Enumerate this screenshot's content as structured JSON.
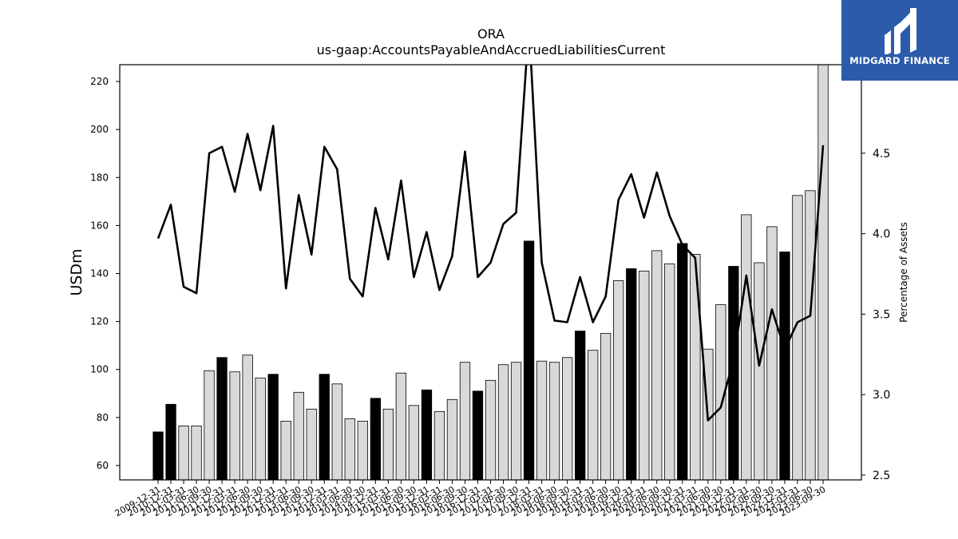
{
  "chart_data": {
    "type": "bar",
    "title": "ORA",
    "subtitle": "us-gaap:AccountsPayableAndAccruedLiabilitiesCurrent",
    "ylabel": "USDm",
    "y2label": "Percentage of Assets",
    "ylim": [
      54,
      227
    ],
    "y2lim": [
      2.47,
      5.05
    ],
    "yticks": [
      60,
      80,
      100,
      120,
      140,
      160,
      180,
      200,
      220
    ],
    "y2ticks": [
      "2.5",
      "3.0",
      "3.5",
      "4.0",
      "4.5"
    ],
    "grid": false,
    "categories": [
      "2009-12-31",
      "2010-12-31",
      "2011-03-31",
      "2011-06-30",
      "2011-09-30",
      "2011-12-31",
      "2012-03-31",
      "2012-06-30",
      "2012-09-30",
      "2012-12-31",
      "2013-03-31",
      "2013-06-30",
      "2013-09-30",
      "2013-12-31",
      "2014-03-31",
      "2014-06-30",
      "2014-09-30",
      "2014-12-31",
      "2015-03-31",
      "2015-06-30",
      "2015-09-30",
      "2015-12-31",
      "2016-03-31",
      "2016-06-30",
      "2016-09-30",
      "2016-12-31",
      "2017-03-31",
      "2017-06-30",
      "2017-09-30",
      "2017-12-31",
      "2018-03-31",
      "2018-06-30",
      "2018-09-30",
      "2018-12-31",
      "2019-03-31",
      "2019-06-30",
      "2019-09-30",
      "2019-12-31",
      "2020-03-31",
      "2020-06-30",
      "2020-09-30",
      "2020-12-31",
      "2021-03-31",
      "2021-06-30",
      "2021-09-30",
      "2021-12-31",
      "2022-03-31",
      "2022-06-30",
      "2022-09-30",
      "2022-12-31",
      "2023-03-31",
      "2023-06-30",
      "2023-09-30"
    ],
    "series": [
      {
        "values": [
          74,
          85.5,
          76.5,
          76.5,
          99.5,
          105,
          99,
          106,
          96.5,
          98,
          78.5,
          90.5,
          83.5,
          98,
          94,
          79.5,
          78.5,
          88,
          83.5,
          98.5,
          85,
          91.5,
          82.5,
          87.5,
          103,
          91,
          95.5,
          102,
          103,
          153.5,
          103.5,
          103,
          105,
          116,
          108,
          115,
          137,
          142,
          141,
          149.5,
          144,
          152.5,
          148,
          108.5,
          127,
          143,
          164.5,
          144.5,
          159.5,
          149,
          172.5,
          174.5,
          228
        ],
        "highlight": [
          1,
          1,
          0,
          0,
          0,
          1,
          0,
          0,
          0,
          1,
          0,
          0,
          0,
          1,
          0,
          0,
          0,
          1,
          0,
          0,
          0,
          1,
          0,
          0,
          0,
          1,
          0,
          0,
          0,
          1,
          0,
          0,
          0,
          1,
          0,
          0,
          0,
          1,
          0,
          0,
          0,
          1,
          0,
          0,
          0,
          1,
          0,
          0,
          0,
          1,
          0,
          0,
          0
        ],
        "colors": {
          "highlight": "#000000",
          "normal": "#d9d9d9",
          "edge": "#000000"
        }
      },
      {
        "type": "line",
        "axis": "right",
        "color": "#000000",
        "values": [
          3.97,
          4.18,
          3.67,
          3.63,
          4.5,
          4.54,
          4.26,
          4.62,
          4.27,
          4.67,
          3.66,
          4.24,
          3.87,
          4.54,
          4.4,
          3.72,
          3.61,
          4.16,
          3.84,
          4.33,
          3.73,
          4.01,
          3.65,
          3.86,
          4.51,
          3.73,
          3.82,
          4.06,
          4.13,
          5.3,
          3.82,
          3.46,
          3.45,
          3.73,
          3.45,
          3.61,
          4.21,
          4.37,
          4.1,
          4.38,
          4.11,
          3.93,
          3.85,
          2.84,
          2.92,
          3.22,
          3.74,
          3.18,
          3.53,
          3.28,
          3.45,
          3.49,
          4.55
        ]
      }
    ]
  },
  "logo": {
    "text": "MIDGARD FINANCE",
    "bg": "#2c5bab"
  }
}
